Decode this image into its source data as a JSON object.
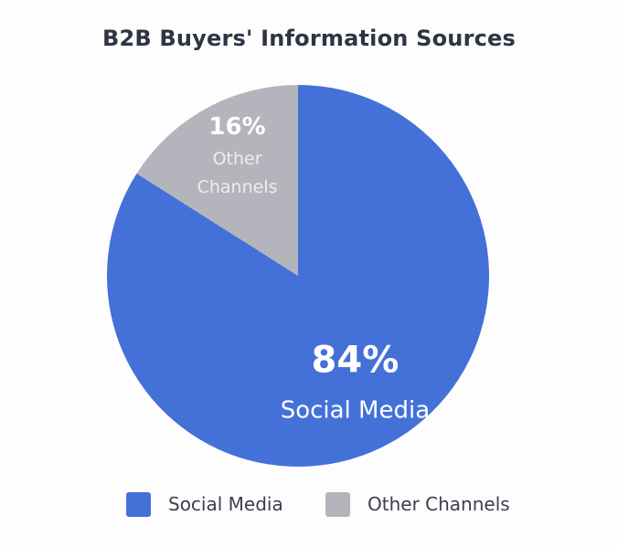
{
  "chart_data": {
    "type": "pie",
    "title": "B2B Buyers' Information Sources",
    "slices": [
      {
        "label": "Social Media",
        "value": 84,
        "display": "84%",
        "color": "#4471d8"
      },
      {
        "label": "Other Channels",
        "value": 16,
        "display": "16%",
        "color": "#b4b4bc"
      }
    ],
    "legend": {
      "placement": "bottom",
      "entries": [
        "Social Media",
        "Other Channels"
      ]
    },
    "start_angle_deg": 0,
    "direction": "clockwise"
  }
}
